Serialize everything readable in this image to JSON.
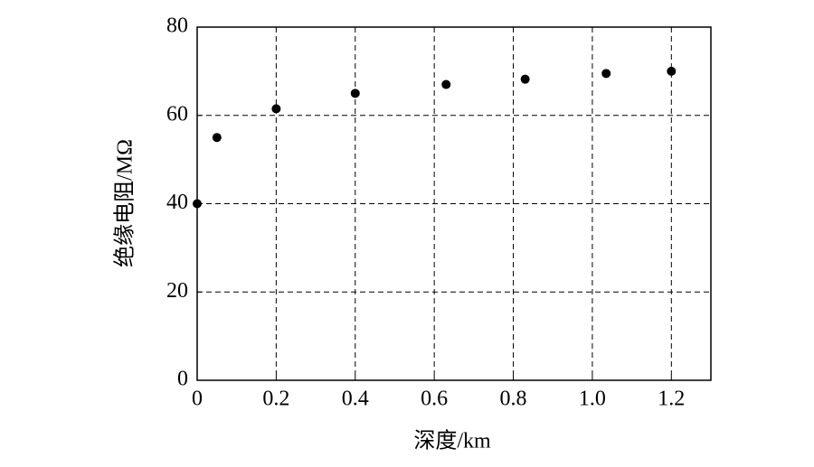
{
  "chart_data": {
    "type": "scatter",
    "x_label": "深度/km",
    "y_label": "绝缘电阻/MΩ",
    "x": [
      0,
      0.05,
      0.2,
      0.4,
      0.63,
      0.83,
      1.035,
      1.2
    ],
    "series": [
      {
        "color": "#000000",
        "values": [
          40,
          55,
          61.5,
          65,
          67,
          68.2,
          69.5,
          70
        ]
      }
    ],
    "xlim": [
      0,
      1.3
    ],
    "ylim": [
      0,
      80
    ],
    "xticks": [
      0,
      0.2,
      0.4,
      0.6,
      0.8,
      {
        "value": 1,
        "label": "1.0"
      },
      1.2
    ],
    "yticks": [
      0,
      20,
      40,
      60,
      80
    ],
    "grid": true
  }
}
